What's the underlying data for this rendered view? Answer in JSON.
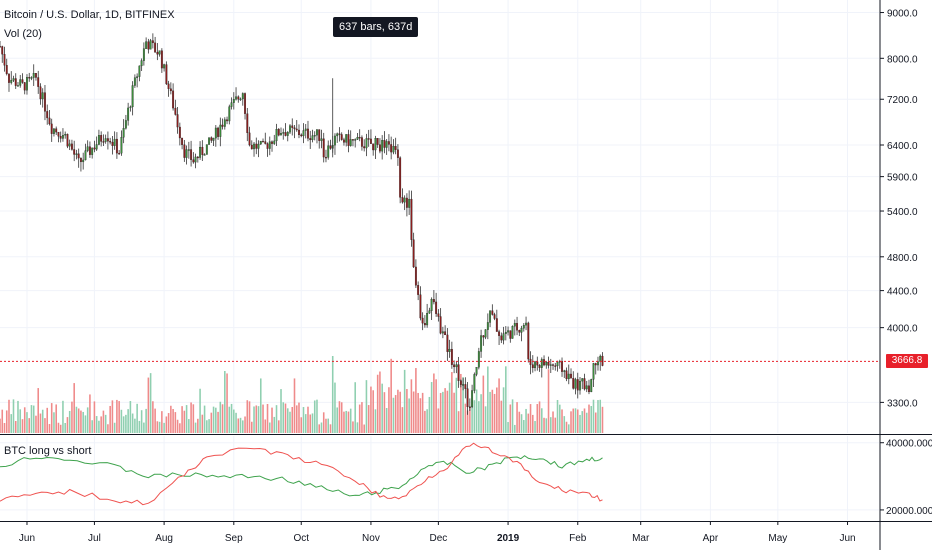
{
  "header": {
    "symbol_line": "Bitcoin / U.S. Dollar, 1D, BITFINEX",
    "volume_label": "Vol (20)"
  },
  "tooltip": {
    "text": "637 bars, 637d"
  },
  "indicator": {
    "title": "BTC long vs short"
  },
  "current_price": {
    "text": "3666.8",
    "value": 3666.8
  },
  "colors": {
    "up": "#3c8d3c",
    "down": "#8b1e1e",
    "vol_up": "#8fcfb0",
    "vol_down": "#ef8a8a",
    "long_line": "#3fa34d",
    "short_line": "#ef5350",
    "price_line": "#e8202a"
  },
  "chart_data": [
    {
      "type": "candlestick",
      "title": "Bitcoin / U.S. Dollar, 1D, BITFINEX",
      "x_tick_labels": [
        "Jun",
        "Jul",
        "Aug",
        "Sep",
        "Oct",
        "Nov",
        "Dec",
        "2019",
        "Feb",
        "Mar",
        "Apr",
        "May",
        "Jun"
      ],
      "y_tick_labels": [
        "9000.0",
        "8000.0",
        "7200.0",
        "6400.0",
        "5900.0",
        "5400.0",
        "4800.0",
        "4400.0",
        "4000.0",
        "3300.0"
      ],
      "y_scale": "log",
      "ylim": [
        3050,
        9200
      ],
      "close_path": [
        {
          "date": "2018-05-20",
          "close": 8250
        },
        {
          "date": "2018-05-24",
          "close": 7600
        },
        {
          "date": "2018-05-30",
          "close": 7450
        },
        {
          "date": "2018-06-05",
          "close": 7600
        },
        {
          "date": "2018-06-12",
          "close": 6700
        },
        {
          "date": "2018-06-18",
          "close": 6550
        },
        {
          "date": "2018-06-24",
          "close": 6100
        },
        {
          "date": "2018-06-30",
          "close": 6350
        },
        {
          "date": "2018-07-06",
          "close": 6600
        },
        {
          "date": "2018-07-12",
          "close": 6300
        },
        {
          "date": "2018-07-18",
          "close": 7350
        },
        {
          "date": "2018-07-24",
          "close": 8350
        },
        {
          "date": "2018-07-30",
          "close": 8100
        },
        {
          "date": "2018-08-05",
          "close": 7100
        },
        {
          "date": "2018-08-10",
          "close": 6300
        },
        {
          "date": "2018-08-14",
          "close": 6150
        },
        {
          "date": "2018-08-22",
          "close": 6450
        },
        {
          "date": "2018-08-30",
          "close": 7000
        },
        {
          "date": "2018-09-05",
          "close": 7350
        },
        {
          "date": "2018-09-08",
          "close": 6400
        },
        {
          "date": "2018-09-14",
          "close": 6350
        },
        {
          "date": "2018-09-22",
          "close": 6650
        },
        {
          "date": "2018-10-01",
          "close": 6600
        },
        {
          "date": "2018-10-10",
          "close": 6550
        },
        {
          "date": "2018-10-11",
          "close": 6250
        },
        {
          "date": "2018-10-16",
          "close": 6500
        },
        {
          "date": "2018-10-25",
          "close": 6450
        },
        {
          "date": "2018-11-05",
          "close": 6400
        },
        {
          "date": "2018-11-13",
          "close": 6300
        },
        {
          "date": "2018-11-14",
          "close": 5600
        },
        {
          "date": "2018-11-18",
          "close": 5500
        },
        {
          "date": "2018-11-20",
          "close": 4650
        },
        {
          "date": "2018-11-24",
          "close": 4000
        },
        {
          "date": "2018-11-28",
          "close": 4300
        },
        {
          "date": "2018-12-05",
          "close": 3800
        },
        {
          "date": "2018-12-10",
          "close": 3550
        },
        {
          "date": "2018-12-15",
          "close": 3250
        },
        {
          "date": "2018-12-20",
          "close": 3900
        },
        {
          "date": "2018-12-24",
          "close": 4150
        },
        {
          "date": "2018-12-29",
          "close": 3900
        },
        {
          "date": "2019-01-05",
          "close": 4000
        },
        {
          "date": "2019-01-09",
          "close": 4050
        },
        {
          "date": "2019-01-10",
          "close": 3650
        },
        {
          "date": "2019-01-18",
          "close": 3650
        },
        {
          "date": "2019-01-25",
          "close": 3600
        },
        {
          "date": "2019-01-31",
          "close": 3450
        },
        {
          "date": "2019-02-07",
          "close": 3450
        },
        {
          "date": "2019-02-08",
          "close": 3700
        },
        {
          "date": "2019-02-12",
          "close": 3667
        }
      ],
      "events": [
        {
          "date": "2018-10-15",
          "high": 7600
        }
      ]
    },
    {
      "type": "line",
      "title": "BTC long vs short",
      "y_tick_labels": [
        "40000.0000",
        "20000.0000"
      ],
      "ylim": [
        17000,
        42000
      ],
      "series": [
        {
          "points": [
            {
              "date": "2018-05-20",
              "value": 33000
            },
            {
              "date": "2018-06-05",
              "value": 36000
            },
            {
              "date": "2018-06-20",
              "value": 35000
            },
            {
              "date": "2018-07-10",
              "value": 33000
            },
            {
              "date": "2018-07-25",
              "value": 30000
            },
            {
              "date": "2018-08-10",
              "value": 30500
            },
            {
              "date": "2018-08-25",
              "value": 30000
            },
            {
              "date": "2018-09-10",
              "value": 30000
            },
            {
              "date": "2018-09-25",
              "value": 29000
            },
            {
              "date": "2018-10-10",
              "value": 26500
            },
            {
              "date": "2018-10-25",
              "value": 24000
            },
            {
              "date": "2018-11-05",
              "value": 25500
            },
            {
              "date": "2018-11-15",
              "value": 27000
            },
            {
              "date": "2018-11-25",
              "value": 33000
            },
            {
              "date": "2018-12-05",
              "value": 34000
            },
            {
              "date": "2018-12-15",
              "value": 31000
            },
            {
              "date": "2018-12-25",
              "value": 33500
            },
            {
              "date": "2019-01-05",
              "value": 36000
            },
            {
              "date": "2019-01-15",
              "value": 35500
            },
            {
              "date": "2019-01-25",
              "value": 33000
            },
            {
              "date": "2019-02-05",
              "value": 35000
            },
            {
              "date": "2019-02-12",
              "value": 35500
            }
          ]
        },
        {
          "points": [
            {
              "date": "2018-05-20",
              "value": 23000
            },
            {
              "date": "2018-06-05",
              "value": 24500
            },
            {
              "date": "2018-06-20",
              "value": 25500
            },
            {
              "date": "2018-07-10",
              "value": 23000
            },
            {
              "date": "2018-07-25",
              "value": 22000
            },
            {
              "date": "2018-08-10",
              "value": 30500
            },
            {
              "date": "2018-08-20",
              "value": 36000
            },
            {
              "date": "2018-09-10",
              "value": 38500
            },
            {
              "date": "2018-09-25",
              "value": 36000
            },
            {
              "date": "2018-10-10",
              "value": 33500
            },
            {
              "date": "2018-10-25",
              "value": 29000
            },
            {
              "date": "2018-11-05",
              "value": 24000
            },
            {
              "date": "2018-11-15",
              "value": 23500
            },
            {
              "date": "2018-11-25",
              "value": 29000
            },
            {
              "date": "2018-12-05",
              "value": 33000
            },
            {
              "date": "2018-12-15",
              "value": 39500
            },
            {
              "date": "2018-12-25",
              "value": 37500
            },
            {
              "date": "2019-01-05",
              "value": 34000
            },
            {
              "date": "2019-01-15",
              "value": 28000
            },
            {
              "date": "2019-01-25",
              "value": 26000
            },
            {
              "date": "2019-02-05",
              "value": 25000
            },
            {
              "date": "2019-02-12",
              "value": 23000
            }
          ]
        }
      ]
    }
  ]
}
